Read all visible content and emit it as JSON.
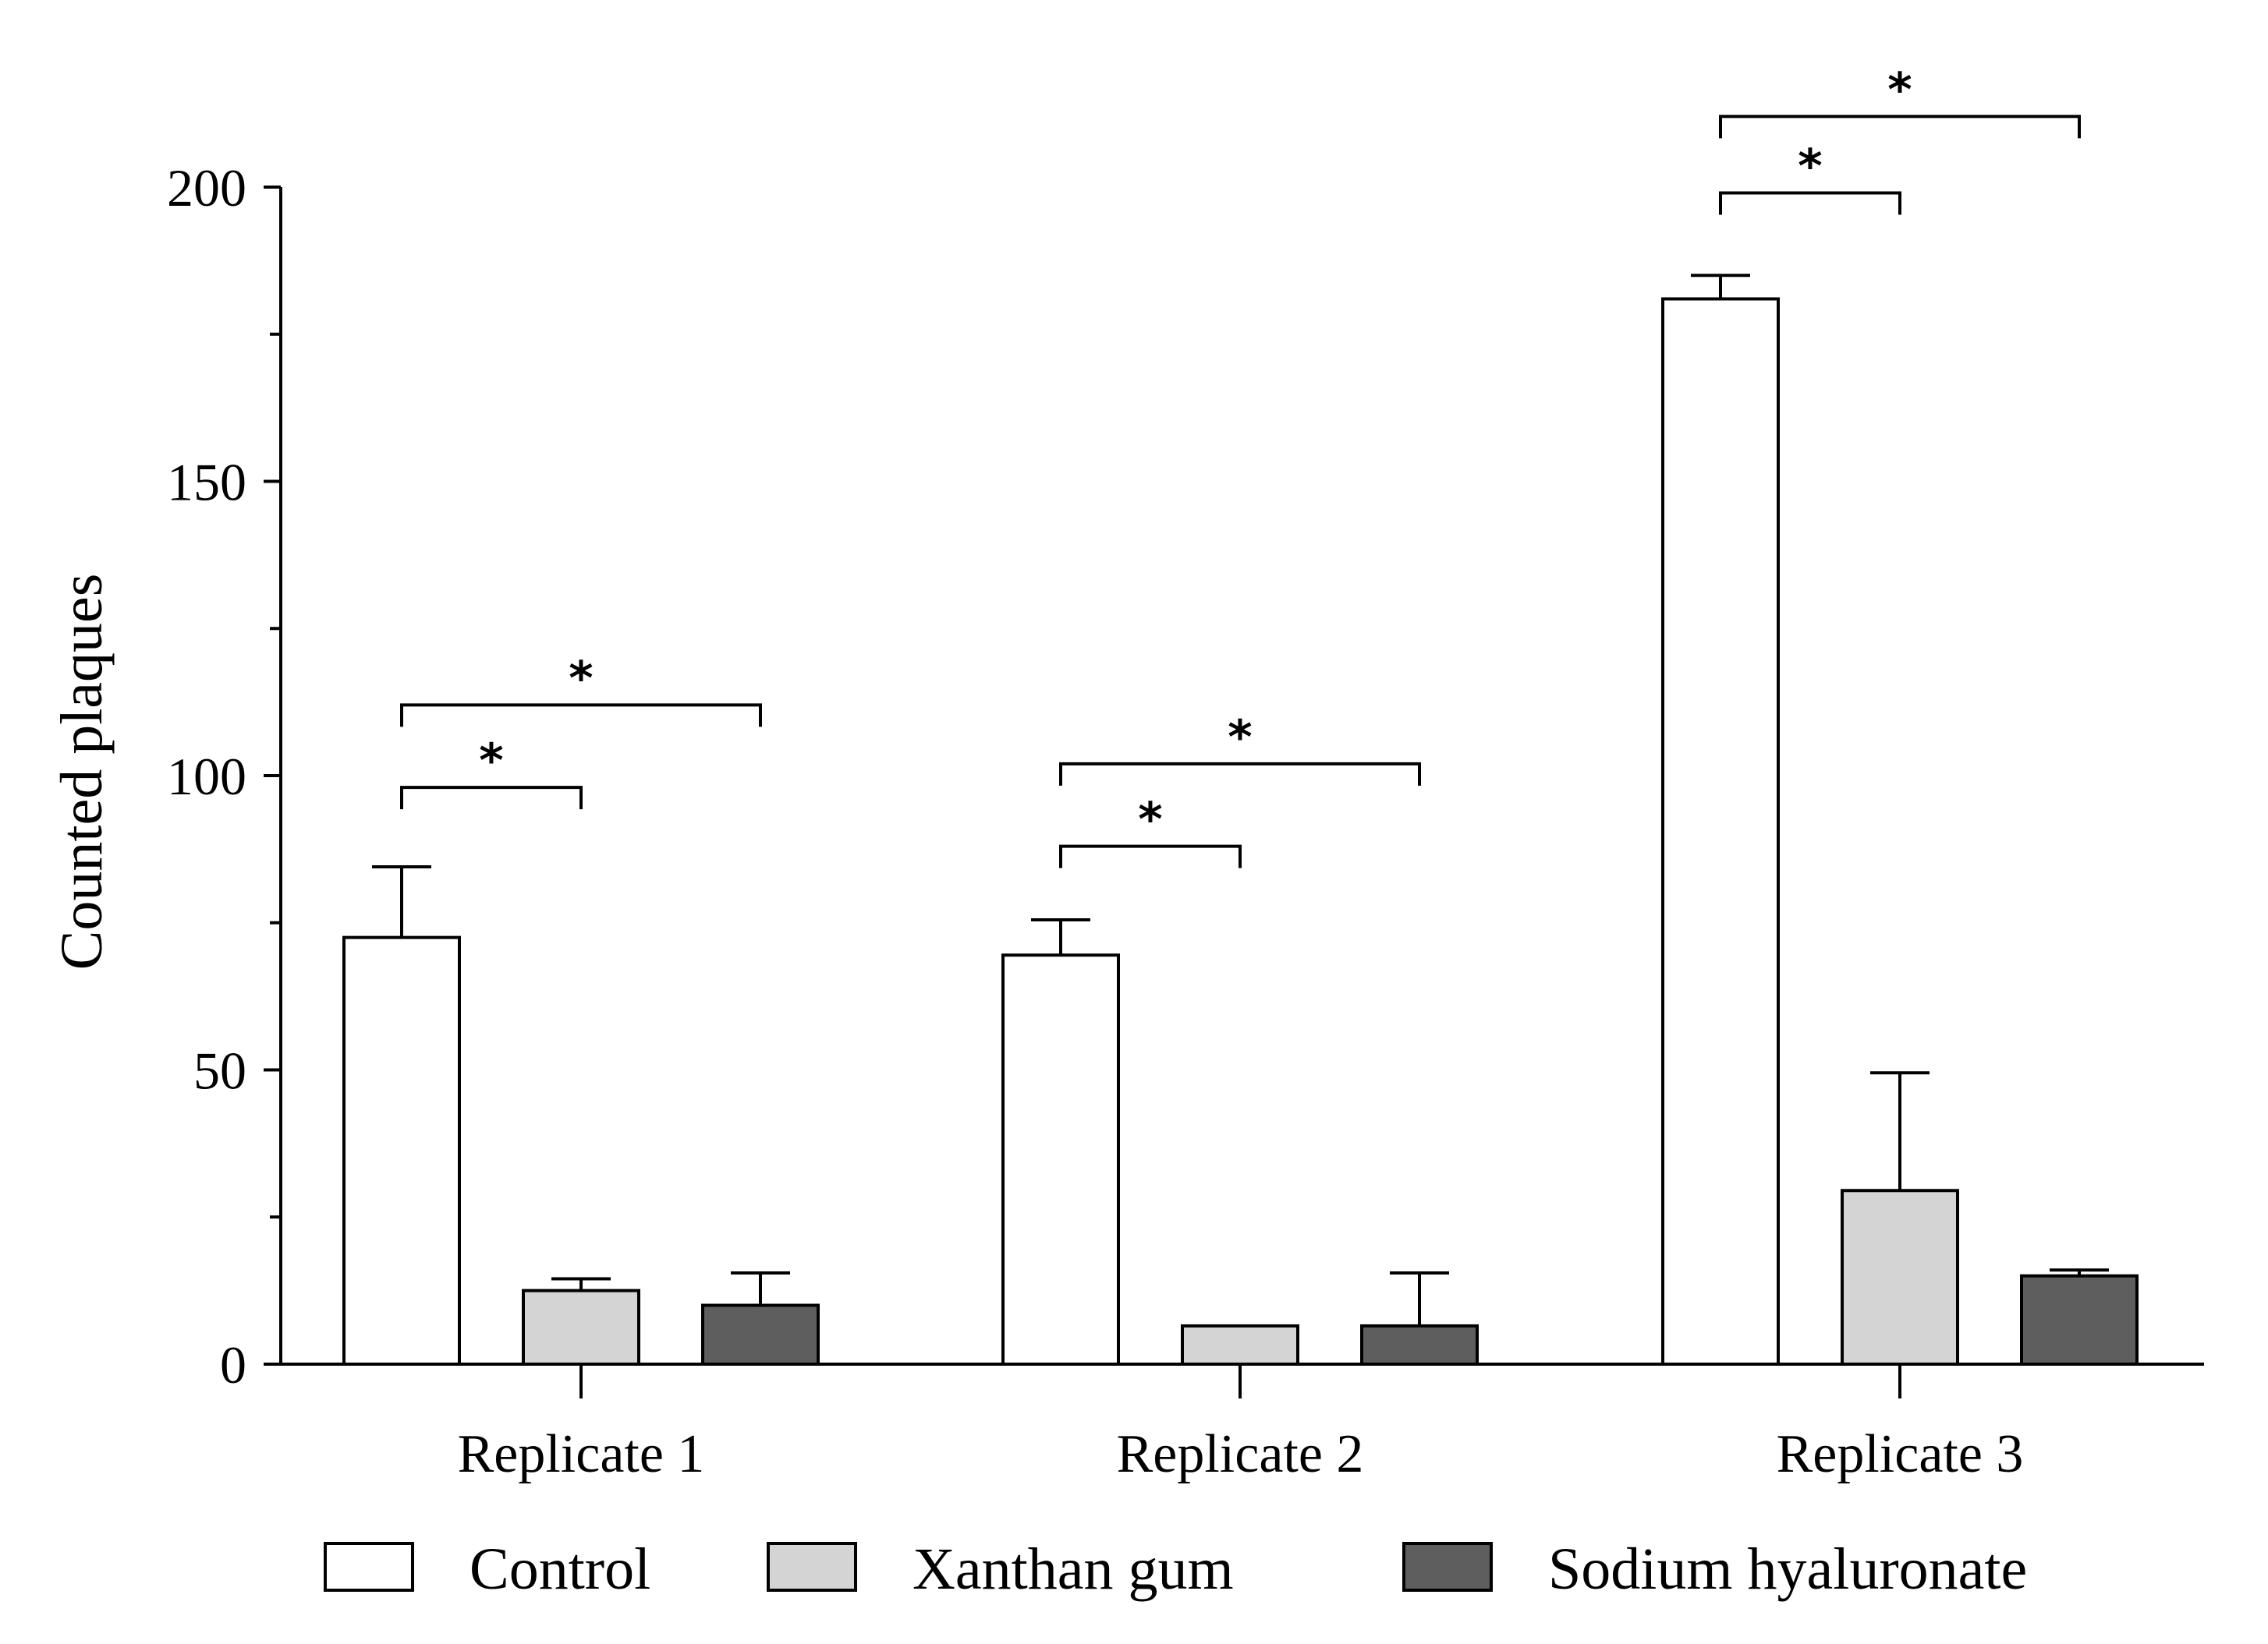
{
  "chart_data": {
    "type": "bar",
    "title": "",
    "xlabel": "",
    "ylabel": "Counted plaques",
    "ylim": [
      0,
      200
    ],
    "yticks": [
      0,
      50,
      100,
      150,
      200
    ],
    "minor_ytick_step": 25,
    "categories": [
      "Replicate 1",
      "Replicate 2",
      "Replicate 3"
    ],
    "series": [
      {
        "name": "Control",
        "color": "#ffffff",
        "values": [
          72.5,
          69.5,
          181
        ],
        "errors": [
          12,
          6,
          4
        ]
      },
      {
        "name": "Xanthan gum",
        "color": "#d4d4d4",
        "values": [
          12.5,
          6.5,
          29.5
        ],
        "errors": [
          2,
          0,
          20
        ]
      },
      {
        "name": "Sodium hyaluronate",
        "color": "#5e5e5e",
        "values": [
          10,
          6.5,
          15
        ],
        "errors": [
          5.5,
          9,
          1
        ]
      }
    ],
    "significance": [
      {
        "category": 0,
        "from": 0,
        "to": 1,
        "y": 98,
        "label": "*"
      },
      {
        "category": 0,
        "from": 0,
        "to": 2,
        "y": 112,
        "label": "*"
      },
      {
        "category": 1,
        "from": 0,
        "to": 1,
        "y": 88,
        "label": "*"
      },
      {
        "category": 1,
        "from": 0,
        "to": 2,
        "y": 102,
        "label": "*"
      },
      {
        "category": 2,
        "from": 0,
        "to": 1,
        "y": 199,
        "label": "*"
      },
      {
        "category": 2,
        "from": 0,
        "to": 2,
        "y": 212,
        "label": "*"
      }
    ],
    "legend_position": "bottom"
  }
}
